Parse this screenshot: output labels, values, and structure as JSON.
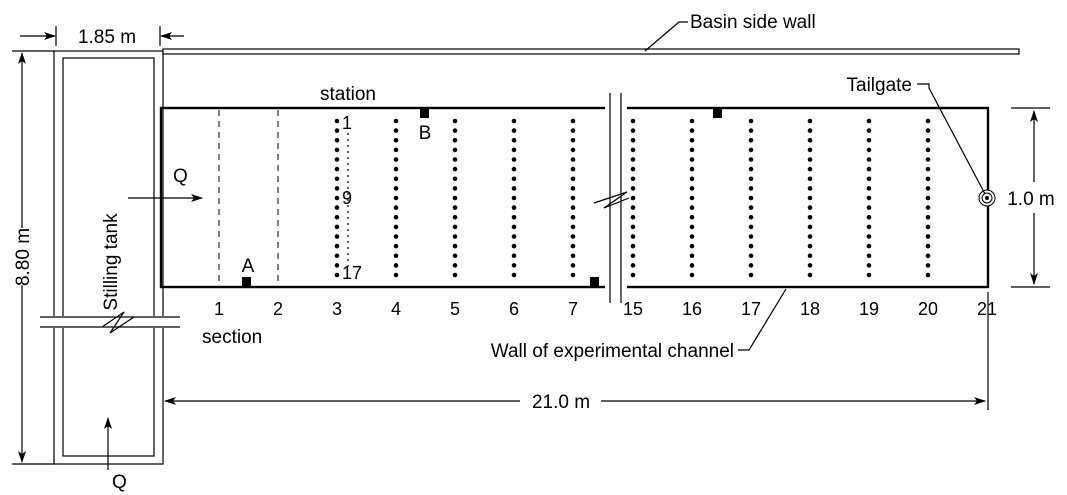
{
  "labels": {
    "width_tank": "1.85 m",
    "basin_side_wall": "Basin side wall",
    "height_total": "8.80 m",
    "stilling_tank": "Stilling tank",
    "station": "station",
    "tailgate": "Tailgate",
    "channel_width": "1.0 m",
    "q_inflow": "Q",
    "q_tank": "Q",
    "section": "section",
    "channel_wall": "Wall of experimental channel",
    "length": "21.0 m",
    "point_a": "A",
    "point_b": "B",
    "station_first": "1",
    "station_mid": "9",
    "station_last": "17"
  },
  "sections": [
    "1",
    "2",
    "3",
    "4",
    "5",
    "6",
    "7",
    "15",
    "16",
    "17",
    "18",
    "19",
    "20",
    "21"
  ]
}
